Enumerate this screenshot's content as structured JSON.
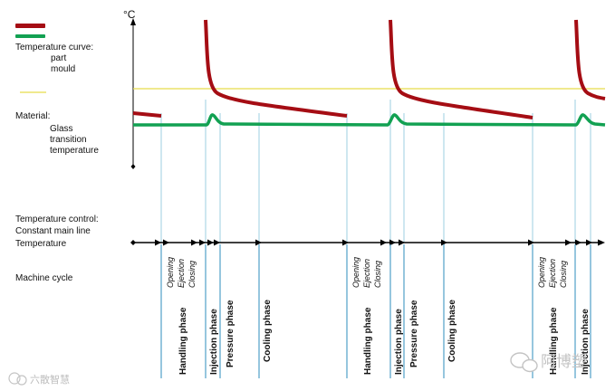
{
  "legend": {
    "part_color": "#a50d14",
    "mould_color": "#12a152",
    "tg_color": "#e6dc4a",
    "temperature_curve_label": "Temperature curve:",
    "part_label": "part",
    "mould_label": "mould",
    "material_label": "Material:",
    "glass_label": "Glass",
    "transition_label": "transition",
    "temperature_label": "temperature"
  },
  "axis": {
    "unit": "°C"
  },
  "control": {
    "line1": "Temperature control:",
    "line2": "Constant main line",
    "line3": "Temperature"
  },
  "machine_cycle_label": "Machine cycle",
  "phases": {
    "opening": "Opening",
    "ejection": "Ejection",
    "closing": "Closing",
    "handling": "Handling phase",
    "injection": "Injection phase",
    "pressure": "Pressure phase",
    "cooling": "Cooling phase"
  },
  "watermark": {
    "left_text": "六散智慧",
    "right_text": "阿博塑"
  }
}
